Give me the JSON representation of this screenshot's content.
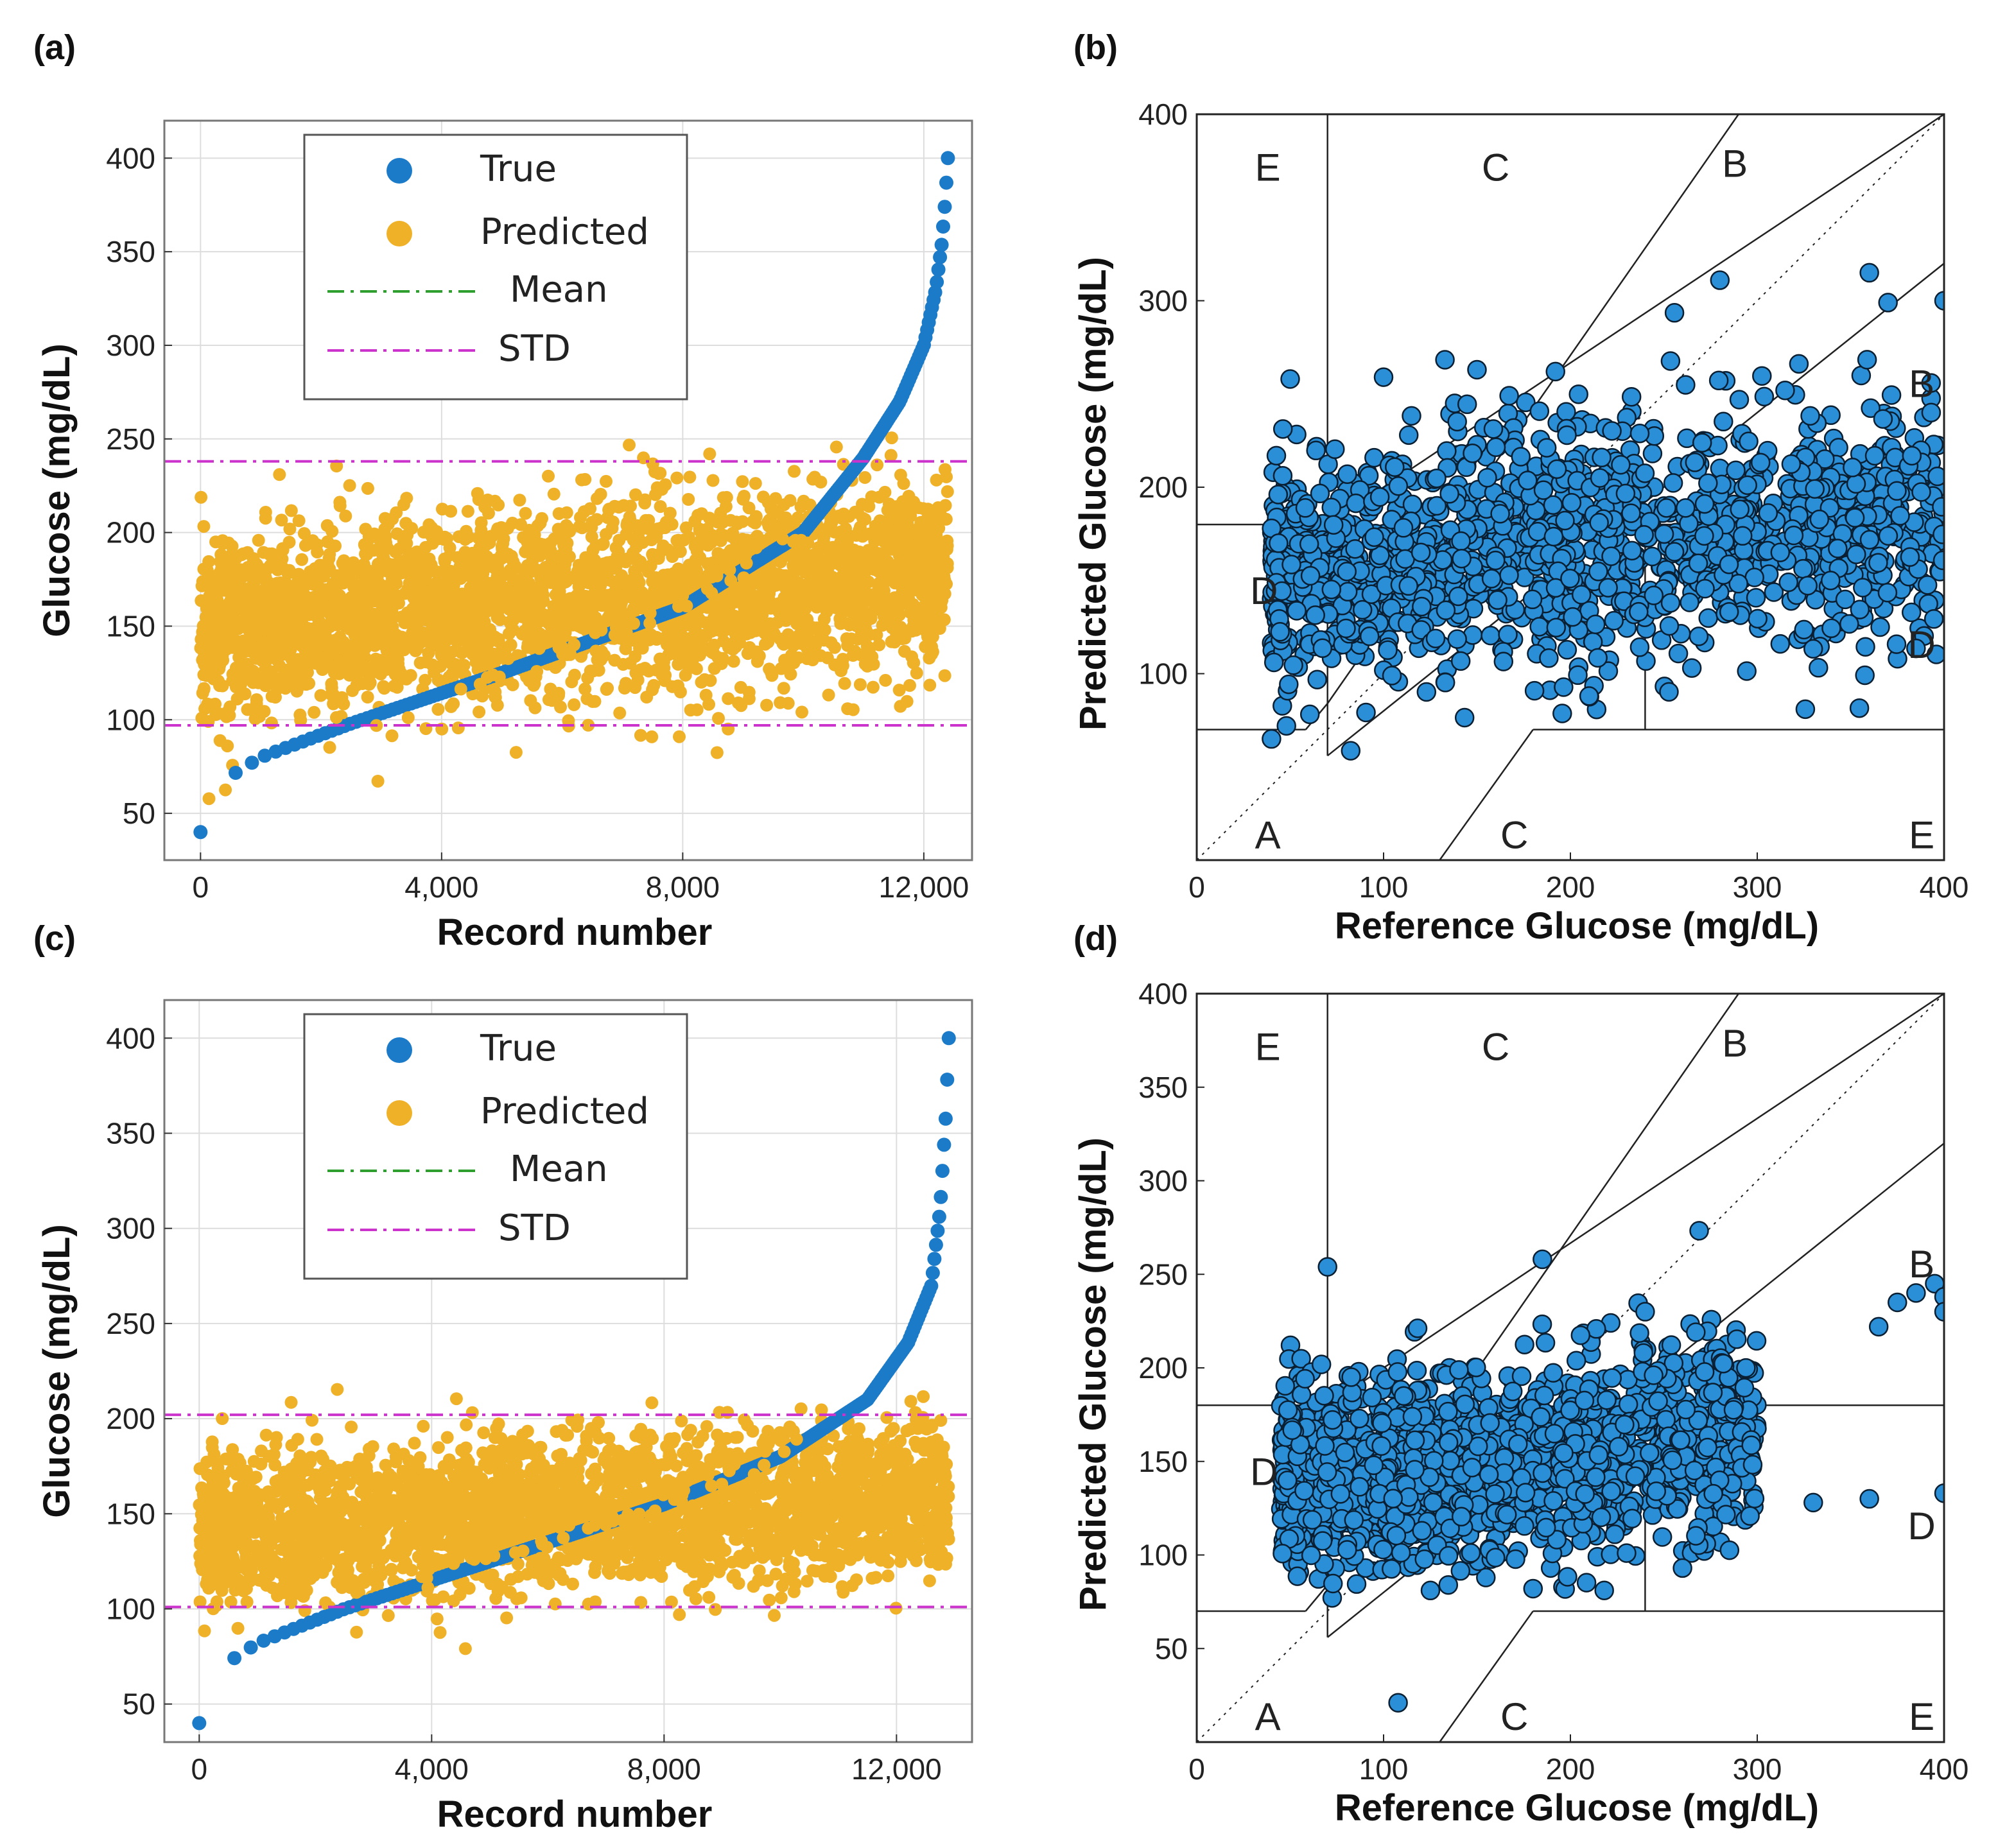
{
  "figure": {
    "colors": {
      "true": "#1b7bc8",
      "predicted": "#efb128",
      "mean": "#2e9e2e",
      "std": "#cc33cc",
      "clarke_point": "#2a8fd6",
      "clarke_edge": "#0b1f33",
      "grid": "#dddddd",
      "frame": "#777777"
    }
  },
  "chart_data": [
    {
      "id": "a",
      "panel_label": "(a)",
      "type": "scatter",
      "title": "",
      "xlabel": "Record number",
      "ylabel": "Glucose (mg/dL)",
      "xlim": [
        -600,
        12800
      ],
      "ylim": [
        25,
        420
      ],
      "xticks": [
        0,
        4000,
        8000,
        12000
      ],
      "xtick_labels": [
        "0",
        "4,000",
        "8,000",
        "12,000"
      ],
      "yticks": [
        50,
        100,
        150,
        200,
        250,
        300,
        350,
        400
      ],
      "ytick_labels": [
        "50",
        "100",
        "150",
        "200",
        "250",
        "300",
        "350",
        "400"
      ],
      "grid": true,
      "legend_position": "top-center",
      "legend": [
        "True",
        "Predicted",
        "Mean",
        "STD"
      ],
      "std_lines": [
        97,
        238
      ],
      "n_records": 12400,
      "predicted_trend": [
        148,
        178
      ],
      "predicted_spread": 26,
      "true_curve": {
        "x": [
          0,
          150,
          400,
          1000,
          2500,
          5000,
          8000,
          10000,
          11000,
          11600,
          12000,
          12200,
          12300,
          12350,
          12400
        ],
        "y": [
          40,
          60,
          68,
          80,
          98,
          125,
          160,
          200,
          240,
          270,
          300,
          330,
          355,
          375,
          400
        ]
      }
    },
    {
      "id": "b",
      "panel_label": "(b)",
      "type": "scatter",
      "title": "",
      "xlabel": "Reference Glucose (mg/dL)",
      "ylabel": "Predicted Glucose (mg/dL)",
      "xlim": [
        0,
        400
      ],
      "ylim": [
        0,
        400
      ],
      "xticks": [
        0,
        100,
        200,
        300,
        400
      ],
      "xtick_labels": [
        "0",
        "100",
        "200",
        "300",
        "400"
      ],
      "yticks": [
        100,
        200,
        300,
        400
      ],
      "ytick_labels": [
        "100",
        "200",
        "300",
        "400"
      ],
      "grid": false,
      "zone_labels": [
        {
          "text": "E",
          "x": 38,
          "y": 372
        },
        {
          "text": "C",
          "x": 160,
          "y": 372
        },
        {
          "text": "B",
          "x": 288,
          "y": 374
        },
        {
          "text": "B",
          "x": 388,
          "y": 256
        },
        {
          "text": "D",
          "x": 36,
          "y": 145
        },
        {
          "text": "D",
          "x": 388,
          "y": 116
        },
        {
          "text": "A",
          "x": 38,
          "y": 14
        },
        {
          "text": "C",
          "x": 170,
          "y": 14
        },
        {
          "text": "E",
          "x": 388,
          "y": 14
        }
      ],
      "cloud": {
        "x_range": [
          40,
          400
        ],
        "y_base": 160,
        "y_slope": 0.08,
        "y_spread": 32
      },
      "outliers": [
        [
          50,
          258
        ],
        [
          100,
          259
        ],
        [
          150,
          263
        ],
        [
          192,
          262
        ],
        [
          280,
          311
        ],
        [
          360,
          315
        ],
        [
          370,
          299
        ],
        [
          400,
          300
        ],
        [
          265,
          103
        ],
        [
          210,
          88
        ],
        [
          40,
          65
        ],
        [
          48,
          72
        ]
      ]
    },
    {
      "id": "c",
      "panel_label": "(c)",
      "type": "scatter",
      "title": "",
      "xlabel": "Record number",
      "ylabel": "Glucose (mg/dL)",
      "xlim": [
        -600,
        13300
      ],
      "ylim": [
        30,
        420
      ],
      "xticks": [
        0,
        4000,
        8000,
        12000
      ],
      "xtick_labels": [
        "0",
        "4,000",
        "8,000",
        "12,000"
      ],
      "yticks": [
        50,
        100,
        150,
        200,
        250,
        300,
        350,
        400
      ],
      "ytick_labels": [
        "50",
        "100",
        "150",
        "200",
        "250",
        "300",
        "350",
        "400"
      ],
      "grid": true,
      "legend_position": "top-center",
      "legend": [
        "True",
        "Predicted",
        "Mean",
        "STD"
      ],
      "std_lines": [
        101,
        202
      ],
      "n_records": 12900,
      "predicted_trend": [
        140,
        160
      ],
      "predicted_spread": 20,
      "true_curve": {
        "x": [
          0,
          150,
          400,
          1000,
          2500,
          5000,
          8000,
          10000,
          11500,
          12200,
          12600,
          12750,
          12850,
          12900
        ],
        "y": [
          40,
          60,
          70,
          82,
          100,
          125,
          155,
          180,
          210,
          240,
          270,
          310,
          360,
          400
        ]
      }
    },
    {
      "id": "d",
      "panel_label": "(d)",
      "type": "scatter",
      "title": "",
      "xlabel": "Reference Glucose (mg/dL)",
      "ylabel": "Predicted Glucose (mg/dL)",
      "xlim": [
        0,
        400
      ],
      "ylim": [
        0,
        400
      ],
      "xticks": [
        0,
        100,
        200,
        300,
        400
      ],
      "xtick_labels": [
        "0",
        "100",
        "200",
        "300",
        "400"
      ],
      "yticks": [
        50,
        100,
        150,
        200,
        250,
        300,
        350,
        400
      ],
      "ytick_labels": [
        "50",
        "100",
        "150",
        "200",
        "250",
        "300",
        "350",
        "400"
      ],
      "grid": false,
      "zone_labels": [
        {
          "text": "E",
          "x": 38,
          "y": 372
        },
        {
          "text": "C",
          "x": 160,
          "y": 372
        },
        {
          "text": "B",
          "x": 288,
          "y": 374
        },
        {
          "text": "B",
          "x": 388,
          "y": 256
        },
        {
          "text": "D",
          "x": 36,
          "y": 145
        },
        {
          "text": "D",
          "x": 388,
          "y": 116
        },
        {
          "text": "A",
          "x": 38,
          "y": 14
        },
        {
          "text": "C",
          "x": 170,
          "y": 14
        },
        {
          "text": "E",
          "x": 388,
          "y": 14
        }
      ],
      "cloud": {
        "x_range": [
          45,
          300
        ],
        "y_base": 145,
        "y_slope": 0.1,
        "y_spread": 26
      },
      "outliers": [
        [
          70,
          254
        ],
        [
          185,
          258
        ],
        [
          240,
          230
        ],
        [
          365,
          222
        ],
        [
          375,
          235
        ],
        [
          385,
          240
        ],
        [
          395,
          245
        ],
        [
          400,
          238
        ],
        [
          400,
          230
        ],
        [
          330,
          128
        ],
        [
          360,
          130
        ],
        [
          400,
          133
        ],
        [
          180,
          82
        ],
        [
          260,
          93
        ]
      ]
    }
  ]
}
